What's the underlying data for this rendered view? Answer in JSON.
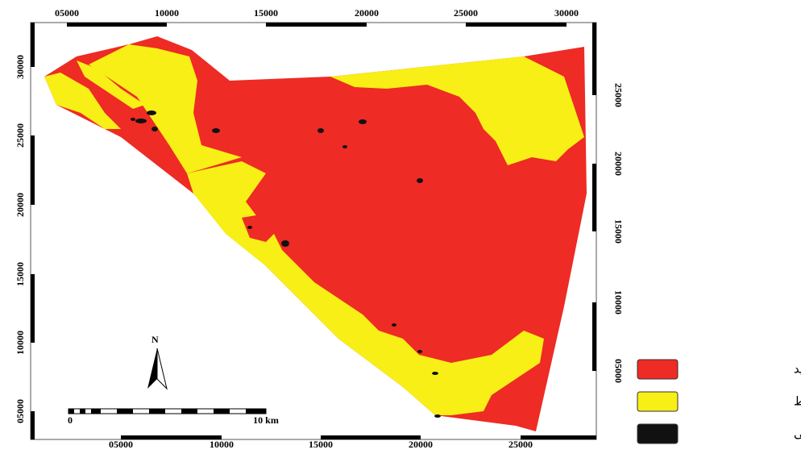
{
  "map": {
    "top_labels": [
      "05000",
      "10000",
      "15000",
      "20000",
      "25000",
      "30000"
    ],
    "bottom_labels": [
      "05000",
      "10000",
      "15000",
      "20000",
      "25000"
    ],
    "left_labels": [
      "30000",
      "25000",
      "20000",
      "15000",
      "10000",
      "05000"
    ],
    "right_labels": [
      "25000",
      "20000",
      "15000",
      "10000",
      "05000"
    ],
    "north": "N",
    "scale_bar": {
      "start": "0",
      "end": "10 km"
    },
    "legend": [
      "کلاس شدید",
      "کلاس متوسط",
      "منطقه مسکونی"
    ]
  }
}
